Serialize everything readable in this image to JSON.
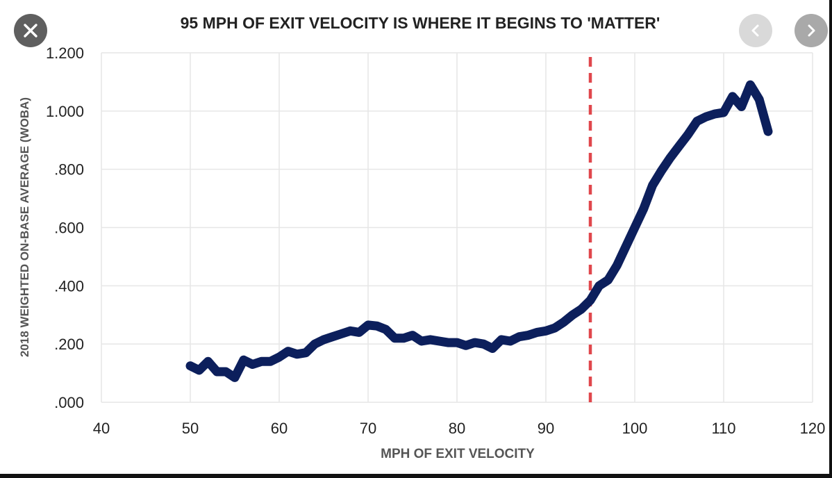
{
  "viewer": {
    "close_icon": "close-icon",
    "prev_icon": "chevron-left-icon",
    "next_icon": "chevron-right-icon"
  },
  "colors": {
    "line": "#0c1f5c",
    "marker": "#e0474c",
    "grid": "#e6e6e6",
    "axis_text": "#222222",
    "label_text": "#555555",
    "title_text": "#222222"
  },
  "chart_data": {
    "type": "line",
    "title": "95 MPH OF EXIT VELOCITY IS WHERE IT BEGINS TO 'MATTER'",
    "xlabel": "MPH OF EXIT VELOCITY",
    "ylabel": "2018 WEIGHTED ON-BASE AVERAGE (WOBA)",
    "xlim": [
      40,
      120
    ],
    "ylim": [
      0,
      1.2
    ],
    "x_ticks": [
      40,
      50,
      60,
      70,
      80,
      90,
      100,
      110,
      120
    ],
    "x_tick_labels": [
      "40",
      "50",
      "60",
      "70",
      "80",
      "90",
      "100",
      "110",
      "120"
    ],
    "y_ticks": [
      0,
      0.2,
      0.4,
      0.6,
      0.8,
      1.0,
      1.2
    ],
    "y_tick_labels": [
      ".000",
      ".200",
      ".400",
      ".600",
      ".800",
      "1.000",
      "1.200"
    ],
    "grid": true,
    "reference_line": {
      "x": 95,
      "style": "dashed"
    },
    "series": [
      {
        "x": [
          50,
          51,
          52,
          53,
          54,
          55,
          56,
          57,
          58,
          59,
          60,
          61,
          62,
          63,
          64,
          65,
          66,
          67,
          68,
          69,
          70,
          71,
          72,
          73,
          74,
          75,
          76,
          77,
          78,
          79,
          80,
          81,
          82,
          83,
          84,
          85,
          86,
          87,
          88,
          89,
          90,
          91,
          92,
          93,
          94,
          95,
          96,
          97,
          98,
          99,
          100,
          101,
          102,
          103,
          104,
          105,
          106,
          107,
          108,
          109,
          110,
          111,
          112,
          113,
          114,
          115
        ],
        "values": [
          0.125,
          0.11,
          0.14,
          0.105,
          0.105,
          0.085,
          0.145,
          0.13,
          0.14,
          0.14,
          0.155,
          0.175,
          0.165,
          0.17,
          0.2,
          0.215,
          0.225,
          0.235,
          0.245,
          0.24,
          0.265,
          0.262,
          0.25,
          0.22,
          0.22,
          0.23,
          0.21,
          0.215,
          0.21,
          0.205,
          0.205,
          0.195,
          0.205,
          0.2,
          0.185,
          0.215,
          0.21,
          0.225,
          0.23,
          0.24,
          0.245,
          0.255,
          0.275,
          0.3,
          0.32,
          0.35,
          0.4,
          0.42,
          0.47,
          0.535,
          0.6,
          0.665,
          0.745,
          0.795,
          0.84,
          0.88,
          0.92,
          0.965,
          0.98,
          0.99,
          0.995,
          1.05,
          1.015,
          1.09,
          1.04,
          0.93
        ]
      }
    ]
  }
}
